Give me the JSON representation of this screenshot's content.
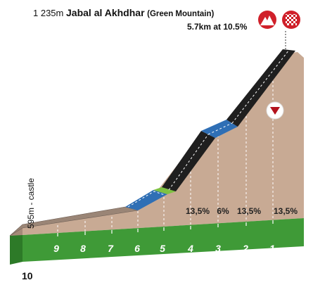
{
  "summit": {
    "altitude": "1 235m",
    "name": "Jabal al Akhdhar",
    "subname": "(Green Mountain)",
    "climb": "5.7km at 10.5%"
  },
  "start_label": "595m - castle",
  "total_km": "10",
  "km_markers": [
    "9",
    "8",
    "7",
    "6",
    "5",
    "4",
    "3",
    "2",
    "1"
  ],
  "gradients": [
    "13,5%",
    "6%",
    "13,5%",
    "13,5%"
  ],
  "colors": {
    "terrain": "#c8aa94",
    "ground": "#3f9a37",
    "road": "#1f1f1f",
    "segment_blue": "#2f6fb5",
    "segment_green": "#7ec242",
    "summit_red": "#d0202a"
  },
  "icons": [
    "mountain-summit-icon",
    "finish-flag-icon",
    "triangle-marker-icon"
  ]
}
